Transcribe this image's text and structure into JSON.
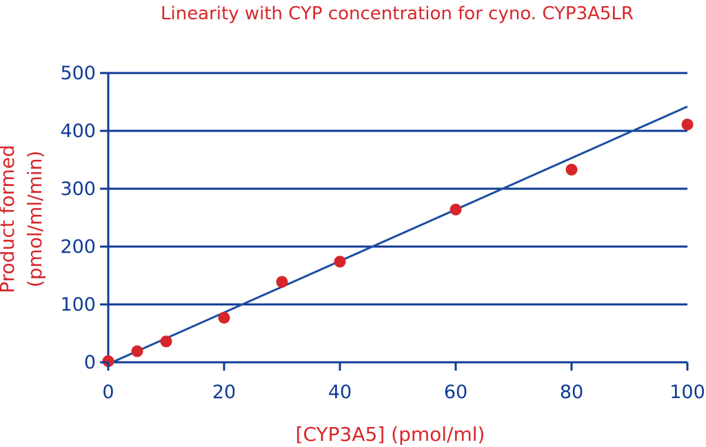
{
  "chart_data": {
    "type": "scatter",
    "title": "Linearity with CYP concentration for cyno. CYP3A5LR",
    "xlabel": "[CYP3A5] (pmol/ml)",
    "ylabel_lines": [
      "Product formed",
      "(pmol/ml/min)"
    ],
    "xlim": [
      0,
      100
    ],
    "ylim": [
      0,
      500
    ],
    "x_ticks": [
      0,
      20,
      40,
      60,
      80,
      100
    ],
    "y_ticks": [
      0,
      100,
      200,
      300,
      400,
      500
    ],
    "grid": "horizontal",
    "series": [
      {
        "x": [
          0,
          5,
          10,
          20,
          30,
          40,
          60,
          80,
          100
        ],
        "y": [
          2,
          19,
          36,
          77,
          139,
          174,
          264,
          333,
          411
        ]
      }
    ],
    "trendline": {
      "x": [
        0,
        100
      ],
      "y": [
        -3,
        442
      ]
    },
    "colors": {
      "text_accent": "#d7262b",
      "axis": "#0f3b94",
      "points": "#d7262b",
      "trendline": "#1c4ea1"
    }
  }
}
